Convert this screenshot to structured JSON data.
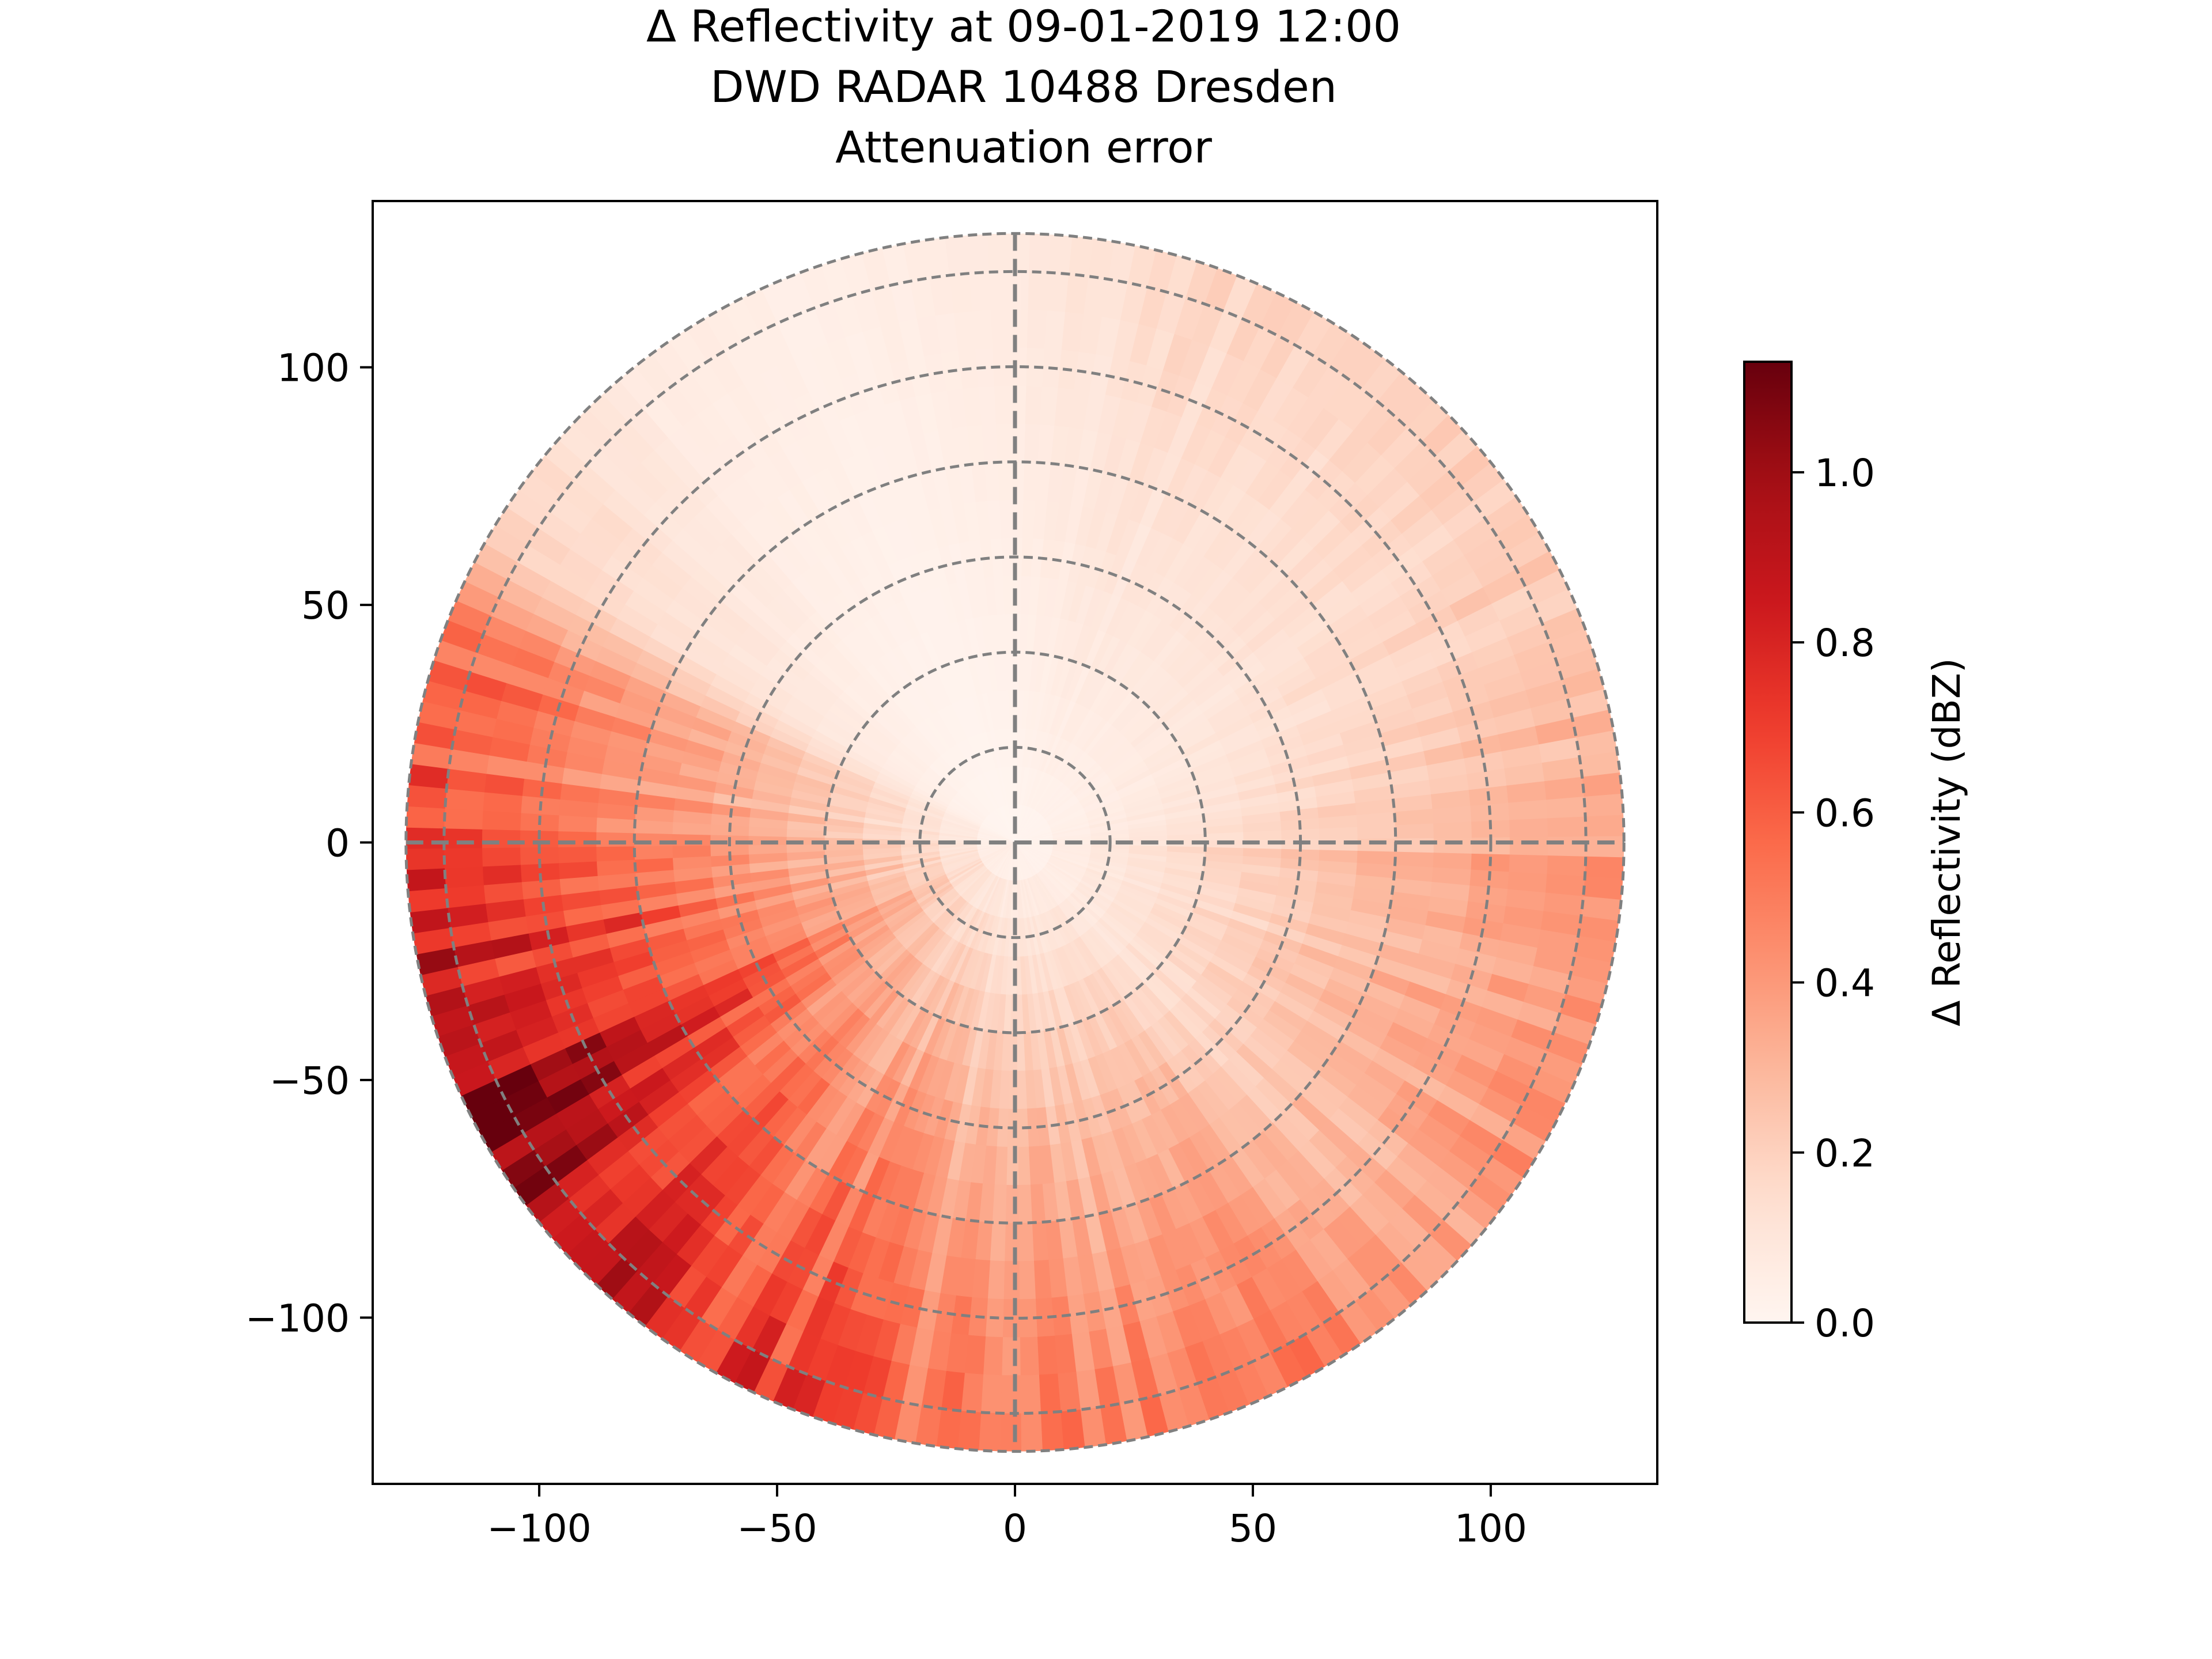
{
  "chart_data": {
    "type": "heatmap",
    "title": [
      "Δ Reflectivity at 09-01-2019 12:00",
      "DWD RADAR 10488 Dresden",
      "Attenuation error"
    ],
    "xlabel": "",
    "ylabel": "",
    "xlim": [
      -135,
      135
    ],
    "ylim": [
      -135,
      135
    ],
    "x_ticks": [
      -100,
      -50,
      0,
      50,
      100
    ],
    "y_ticks": [
      -100,
      -50,
      0,
      50,
      100
    ],
    "x_tick_labels": [
      "−100",
      "−50",
      "0",
      "50",
      "100"
    ],
    "y_tick_labels": [
      "−100",
      "−50",
      "0",
      "50",
      "100"
    ],
    "max_range": 128,
    "range_rings": [
      20,
      40,
      60,
      80,
      100,
      120,
      128
    ],
    "colorbar": {
      "label": "Δ Reflectivity (dBZ)",
      "range": [
        0,
        1.13
      ],
      "ticks": [
        0.0,
        0.2,
        0.4,
        0.6,
        0.8,
        1.0
      ],
      "tick_labels": [
        "0.0",
        "0.2",
        "0.4",
        "0.6",
        "0.8",
        "1.0"
      ],
      "colormap": "Reds",
      "colors": [
        "#fff5f0",
        "#fee0d2",
        "#fcbba1",
        "#fc9272",
        "#fb6a4a",
        "#ef3b2c",
        "#cb181d",
        "#a50f15",
        "#67000d"
      ]
    },
    "azimuth_edge_values": [
      {
        "azimuth": 0,
        "value": 0.08
      },
      {
        "azimuth": 20,
        "value": 0.18
      },
      {
        "azimuth": 45,
        "value": 0.2
      },
      {
        "azimuth": 70,
        "value": 0.25
      },
      {
        "azimuth": 88,
        "value": 0.35
      },
      {
        "azimuth": 95,
        "value": 0.45
      },
      {
        "azimuth": 110,
        "value": 0.42
      },
      {
        "azimuth": 135,
        "value": 0.38
      },
      {
        "azimuth": 150,
        "value": 0.58
      },
      {
        "azimuth": 170,
        "value": 0.5
      },
      {
        "azimuth": 190,
        "value": 0.55
      },
      {
        "azimuth": 200,
        "value": 0.72
      },
      {
        "azimuth": 215,
        "value": 0.75
      },
      {
        "azimuth": 230,
        "value": 0.9
      },
      {
        "azimuth": 240,
        "value": 1.08
      },
      {
        "azimuth": 250,
        "value": 1.0
      },
      {
        "azimuth": 260,
        "value": 0.88
      },
      {
        "azimuth": 270,
        "value": 0.78
      },
      {
        "azimuth": 280,
        "value": 0.62
      },
      {
        "azimuth": 292,
        "value": 0.55
      },
      {
        "azimuth": 300,
        "value": 0.2
      },
      {
        "azimuth": 320,
        "value": 0.08
      },
      {
        "azimuth": 340,
        "value": 0.04
      },
      {
        "azimuth": 360,
        "value": 0.08
      }
    ],
    "grid_color": "#808080"
  }
}
